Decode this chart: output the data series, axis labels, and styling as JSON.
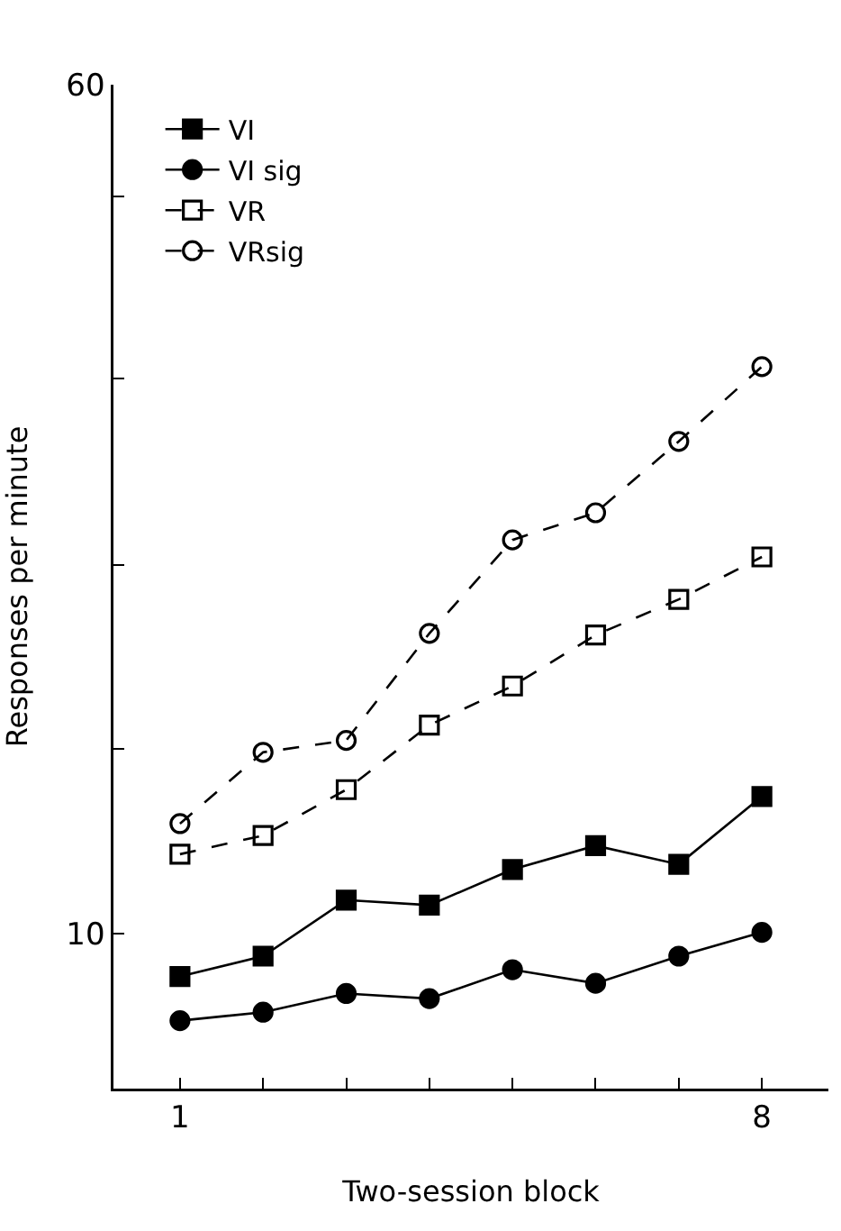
{
  "chart_data": {
    "type": "line",
    "xlabel": "Two-session block",
    "ylabel": "Responses per minute",
    "x": [
      1,
      2,
      3,
      4,
      5,
      6,
      7,
      8
    ],
    "series": [
      {
        "name": "VI",
        "color": "#000000",
        "marker": "square",
        "line_style": "solid",
        "values": [
          7.5,
          8.7,
          12.0,
          11.7,
          13.8,
          15.2,
          14.1,
          18.1
        ]
      },
      {
        "name": "VI sig",
        "color": "#000000",
        "marker": "circle",
        "line_style": "solid",
        "values": [
          4.9,
          5.4,
          6.5,
          6.2,
          7.9,
          7.1,
          8.7,
          10.1
        ]
      },
      {
        "name": "VR",
        "color": "#000000",
        "marker": "square-open",
        "line_style": "dashed",
        "values": [
          14.7,
          15.8,
          18.5,
          22.3,
          24.6,
          27.6,
          29.7,
          32.2
        ]
      },
      {
        "name": "VRsig",
        "color": "#000000",
        "marker": "circle-open",
        "line_style": "dashed",
        "values": [
          16.5,
          20.7,
          21.4,
          27.7,
          33.2,
          34.8,
          39.0,
          43.4
        ]
      }
    ],
    "xlim": [
      0.2,
      8.8
    ],
    "xticks": [
      1,
      {
        "value": 2,
        "label": null
      },
      {
        "value": 3,
        "label": null
      },
      {
        "value": 4,
        "label": null
      },
      {
        "value": 5,
        "label": null
      },
      {
        "value": 6,
        "label": null
      },
      {
        "value": 7,
        "label": null
      },
      8
    ],
    "ylim": [
      0.9,
      60
    ],
    "yticks": [
      10,
      {
        "value": 20.9,
        "label": null
      },
      {
        "value": 31.7,
        "label": null
      },
      {
        "value": 42.7,
        "label": null
      },
      {
        "value": 53.4,
        "label": null
      },
      60
    ],
    "grid": false,
    "legend": "top left"
  }
}
